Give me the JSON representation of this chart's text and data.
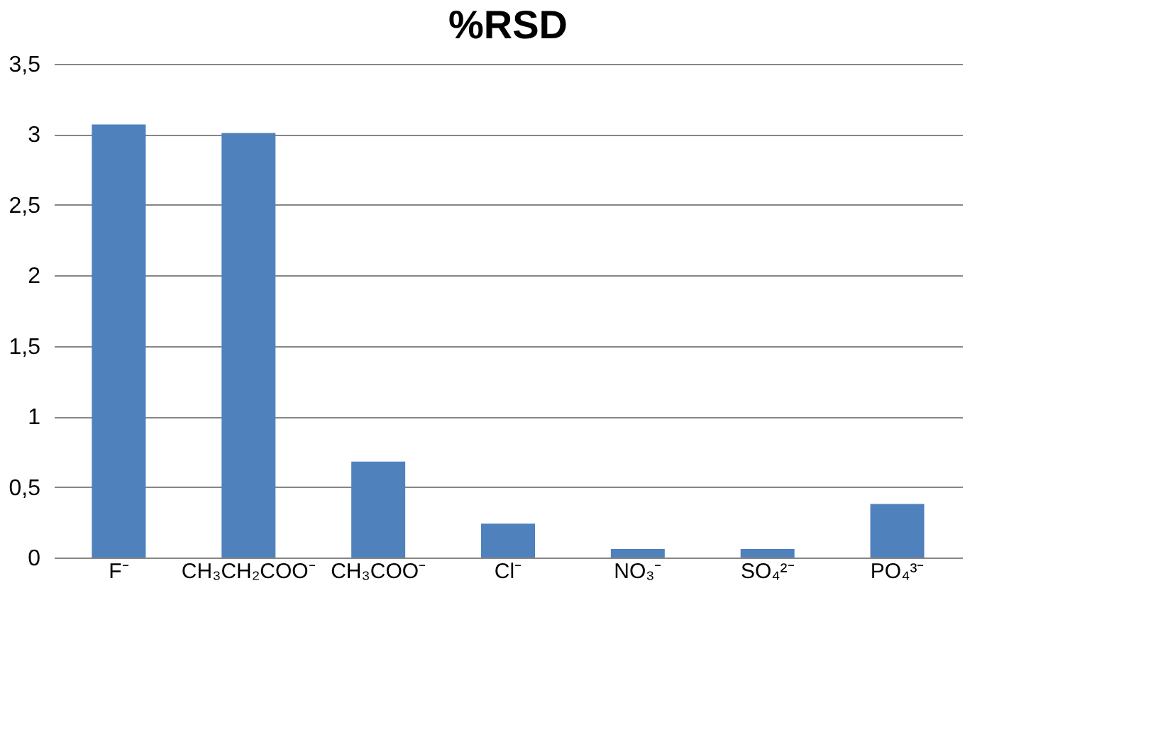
{
  "chart_data": {
    "type": "bar",
    "title": "%RSD",
    "categories": [
      "F⁻",
      "CH₃CH₂COO⁻",
      "CH₃COO⁻",
      "Cl⁻",
      "NO₃⁻",
      "SO₄²⁻",
      "PO₄³⁻"
    ],
    "values": [
      3.07,
      3.01,
      0.68,
      0.24,
      0.06,
      0.06,
      0.38
    ],
    "color": "#4f81bd",
    "ylim": [
      0,
      3.5
    ],
    "yticks": [
      0,
      {
        "value": 0.5,
        "label": "0,5"
      },
      1,
      {
        "value": 1.5,
        "label": "1,5"
      },
      2,
      {
        "value": 2.5,
        "label": "2,5"
      },
      3,
      {
        "value": 3.5,
        "label": "3,5"
      }
    ],
    "grid": "y"
  }
}
